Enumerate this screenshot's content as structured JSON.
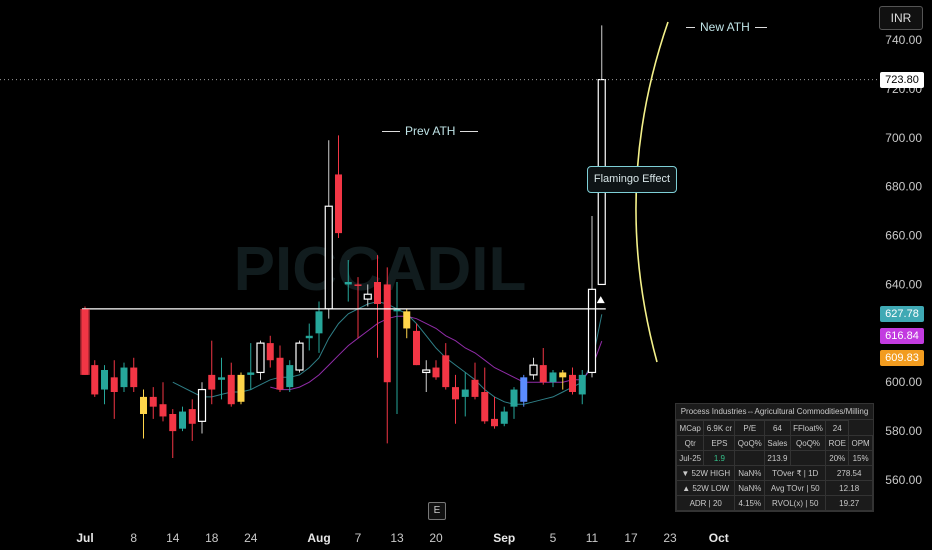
{
  "currency": "INR",
  "chart_data": {
    "type": "candlestick",
    "ylim": [
      548,
      749
    ],
    "y_ticks": [
      {
        "v": 740,
        "label": "740.00"
      },
      {
        "v": 720,
        "label": "720.00"
      },
      {
        "v": 700,
        "label": "700.00"
      },
      {
        "v": 680,
        "label": "680.00"
      },
      {
        "v": 660,
        "label": "660.00"
      },
      {
        "v": 640,
        "label": "640.00"
      },
      {
        "v": 620,
        "label": "620.00"
      },
      {
        "v": 600,
        "label": "600.00"
      },
      {
        "v": 580,
        "label": "580.00"
      },
      {
        "v": 560,
        "label": "560.00"
      }
    ],
    "x_labels": [
      {
        "i": 0,
        "label": "Jul",
        "bold": true
      },
      {
        "i": 5,
        "label": "8"
      },
      {
        "i": 9,
        "label": "14"
      },
      {
        "i": 13,
        "label": "18"
      },
      {
        "i": 17,
        "label": "24"
      },
      {
        "i": 24,
        "label": "Aug",
        "bold": true
      },
      {
        "i": 28,
        "label": "7"
      },
      {
        "i": 32,
        "label": "13"
      },
      {
        "i": 36,
        "label": "20"
      },
      {
        "i": 43,
        "label": "Sep",
        "bold": true
      },
      {
        "i": 48,
        "label": "5"
      },
      {
        "i": 52,
        "label": "11"
      },
      {
        "i": 56,
        "label": "17"
      },
      {
        "i": 60,
        "label": "23"
      },
      {
        "i": 65,
        "label": "Oct",
        "bold": true
      }
    ],
    "candles": [
      {
        "o": 630,
        "h": 631,
        "l": 603,
        "c": 603,
        "col": "red"
      },
      {
        "o": 607,
        "h": 609,
        "l": 594,
        "c": 595,
        "col": "red"
      },
      {
        "o": 597,
        "h": 607,
        "l": 591,
        "c": 605,
        "col": "green"
      },
      {
        "o": 602,
        "h": 609,
        "l": 585,
        "c": 596,
        "col": "red"
      },
      {
        "o": 598,
        "h": 608,
        "l": 596,
        "c": 606,
        "col": "green"
      },
      {
        "o": 606,
        "h": 610,
        "l": 596,
        "c": 598,
        "col": "red"
      },
      {
        "o": 594,
        "h": 597,
        "l": 577,
        "c": 587,
        "col": "yellow"
      },
      {
        "o": 594,
        "h": 598,
        "l": 585,
        "c": 590,
        "col": "red"
      },
      {
        "o": 591,
        "h": 600,
        "l": 584,
        "c": 586,
        "col": "red"
      },
      {
        "o": 587,
        "h": 589,
        "l": 569,
        "c": 580,
        "col": "red"
      },
      {
        "o": 581,
        "h": 590,
        "l": 580,
        "c": 588,
        "col": "green"
      },
      {
        "o": 589,
        "h": 593,
        "l": 576,
        "c": 583,
        "col": "red"
      },
      {
        "o": 584,
        "h": 600,
        "l": 579,
        "c": 597,
        "col": "white"
      },
      {
        "o": 597,
        "h": 617,
        "l": 591,
        "c": 603,
        "col": "red"
      },
      {
        "o": 601,
        "h": 610,
        "l": 593,
        "c": 602,
        "col": "green"
      },
      {
        "o": 603,
        "h": 608,
        "l": 590,
        "c": 591,
        "col": "red"
      },
      {
        "o": 592,
        "h": 604,
        "l": 591,
        "c": 603,
        "col": "yellow"
      },
      {
        "o": 603,
        "h": 616,
        "l": 597,
        "c": 604,
        "col": "green"
      },
      {
        "o": 604,
        "h": 617,
        "l": 601,
        "c": 616,
        "col": "white"
      },
      {
        "o": 616,
        "h": 619,
        "l": 606,
        "c": 609,
        "col": "red"
      },
      {
        "o": 610,
        "h": 615,
        "l": 596,
        "c": 597,
        "col": "red"
      },
      {
        "o": 598,
        "h": 609,
        "l": 596,
        "c": 607,
        "col": "green"
      },
      {
        "o": 605,
        "h": 617,
        "l": 604,
        "c": 616,
        "col": "white"
      },
      {
        "o": 618,
        "h": 624,
        "l": 613,
        "c": 619,
        "col": "green"
      },
      {
        "o": 620,
        "h": 633,
        "l": 612,
        "c": 629,
        "col": "green"
      },
      {
        "o": 630,
        "h": 699,
        "l": 626,
        "c": 672,
        "col": "white"
      },
      {
        "o": 685,
        "h": 701,
        "l": 659,
        "c": 661,
        "col": "red"
      },
      {
        "o": 640,
        "h": 650,
        "l": 633,
        "c": 641,
        "col": "green"
      },
      {
        "o": 640,
        "h": 643,
        "l": 618,
        "c": 640,
        "col": "red"
      },
      {
        "o": 634,
        "h": 640,
        "l": 631,
        "c": 636,
        "col": "white"
      },
      {
        "o": 641,
        "h": 652,
        "l": 610,
        "c": 632,
        "col": "red"
      },
      {
        "o": 640,
        "h": 647,
        "l": 575,
        "c": 600,
        "col": "red"
      },
      {
        "o": 630,
        "h": 641,
        "l": 587,
        "c": 629,
        "col": "green"
      },
      {
        "o": 629,
        "h": 630,
        "l": 618,
        "c": 622,
        "col": "yellow"
      },
      {
        "o": 621,
        "h": 624,
        "l": 607,
        "c": 607,
        "col": "red"
      },
      {
        "o": 604,
        "h": 609,
        "l": 596,
        "c": 605,
        "col": "white"
      },
      {
        "o": 606,
        "h": 609,
        "l": 601,
        "c": 602,
        "col": "red"
      },
      {
        "o": 611,
        "h": 616,
        "l": 597,
        "c": 598,
        "col": "red"
      },
      {
        "o": 598,
        "h": 603,
        "l": 583,
        "c": 593,
        "col": "red"
      },
      {
        "o": 594,
        "h": 604,
        "l": 586,
        "c": 597,
        "col": "green"
      },
      {
        "o": 601,
        "h": 608,
        "l": 593,
        "c": 594,
        "col": "red"
      },
      {
        "o": 596,
        "h": 606,
        "l": 583,
        "c": 584,
        "col": "red"
      },
      {
        "o": 585,
        "h": 594,
        "l": 581,
        "c": 582,
        "col": "red"
      },
      {
        "o": 583,
        "h": 590,
        "l": 582,
        "c": 588,
        "col": "green"
      },
      {
        "o": 590,
        "h": 598,
        "l": 585,
        "c": 597,
        "col": "green"
      },
      {
        "o": 592,
        "h": 603,
        "l": 590,
        "c": 602,
        "col": "blue"
      },
      {
        "o": 603,
        "h": 610,
        "l": 601,
        "c": 607,
        "col": "white"
      },
      {
        "o": 607,
        "h": 614,
        "l": 599,
        "c": 600,
        "col": "red"
      },
      {
        "o": 600,
        "h": 605,
        "l": 598,
        "c": 604,
        "col": "teal"
      },
      {
        "o": 604,
        "h": 605,
        "l": 597,
        "c": 602,
        "col": "yellow"
      },
      {
        "o": 603,
        "h": 606,
        "l": 595,
        "c": 596,
        "col": "red"
      },
      {
        "o": 595,
        "h": 605,
        "l": 591,
        "c": 603,
        "col": "green"
      },
      {
        "o": 604,
        "h": 668,
        "l": 602,
        "c": 638,
        "col": "white"
      },
      {
        "o": 640,
        "h": 746,
        "l": 640,
        "c": 723.8,
        "col": "white"
      }
    ],
    "ma_series": [
      {
        "name": "",
        "color": "#3fa9b4",
        "values": [
          null,
          null,
          null,
          null,
          null,
          null,
          null,
          null,
          null,
          600,
          598,
          596,
          594,
          594,
          595,
          596,
          596,
          597,
          599,
          601,
          602,
          602,
          603,
          606,
          610,
          618,
          624,
          628,
          630,
          632,
          633,
          632,
          630,
          628,
          624,
          619,
          614,
          610,
          607,
          604,
          601,
          597,
          594,
          592,
          591,
          591,
          592,
          593,
          594,
          596,
          598,
          600,
          608,
          627.78
        ]
      },
      {
        "name": "",
        "color": "#c23be0",
        "values": [
          null,
          null,
          null,
          null,
          null,
          null,
          null,
          null,
          null,
          null,
          null,
          null,
          null,
          null,
          null,
          null,
          null,
          null,
          null,
          598,
          597,
          597,
          598,
          600,
          603,
          607,
          611,
          615,
          618,
          621,
          624,
          626,
          627,
          627,
          626,
          624,
          622,
          619,
          617,
          614,
          612,
          609,
          606,
          604,
          602,
          600,
          600,
          600,
          600,
          600,
          601,
          601,
          606,
          616.84
        ]
      },
      {
        "name": "",
        "color": "#f29c1f",
        "values": []
      }
    ],
    "last_price_label": "723.80",
    "indicator_labels": [
      {
        "value": "627.78",
        "color": "#3fa9b4"
      },
      {
        "value": "616.84",
        "color": "#c23be0"
      },
      {
        "value": "609.83",
        "color": "#f29c1f"
      }
    ],
    "last_price": 723.8,
    "breakout_level": 630,
    "breakout_range": [
      0,
      53
    ],
    "annotations": [
      {
        "text": "Prev ATH"
      },
      {
        "text": "New ATH"
      },
      {
        "text": "Flamingo Effect"
      }
    ],
    "earnings_marker": "E",
    "watermark": "PICCADIL"
  },
  "info_table": {
    "header": "Process Industries⇔Agricultural Commodities/Milling",
    "row1": [
      "MCap",
      "6.9K cr",
      "P/E",
      "64",
      "FFloat%",
      "24"
    ],
    "row2": [
      "Qtr",
      "EPS",
      "QoQ%",
      "Sales",
      "QoQ%",
      "ROE",
      "OPM"
    ],
    "row3": [
      "Jul-25",
      "1.9",
      "",
      "213.9",
      "",
      "20%",
      "15%"
    ],
    "row4": [
      "▼ 52W HIGH",
      "NaN%",
      "TOver ₹ | 1D",
      "278.54"
    ],
    "row5": [
      "▲ 52W LOW",
      "NaN%",
      "Avg TOvr | 50",
      "12.18"
    ],
    "row6": [
      "ADR | 20",
      "4.15%",
      "RVOL(x) | 50",
      "19.27"
    ]
  }
}
